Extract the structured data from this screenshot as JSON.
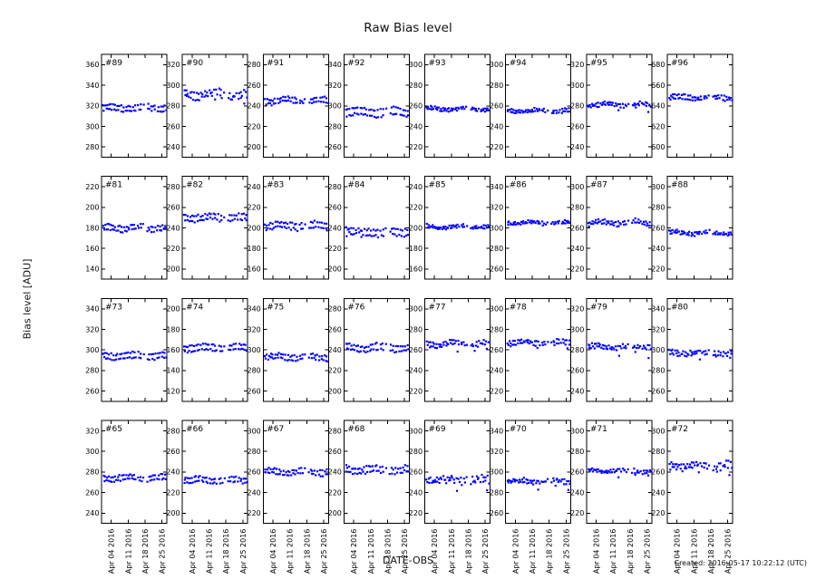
{
  "figure": {
    "title": "Raw Bias level",
    "ylabel": "Bias level [ADU]",
    "xlabel": "DATE-OBS",
    "created": "Created: 2016-05-17 10:22:12 (UTC)"
  },
  "chart_data": {
    "type": "scatter",
    "title": "Raw Bias level",
    "xlabel": "DATE-OBS",
    "ylabel": "Bias level [ADU]",
    "grid_layout": {
      "rows": 4,
      "cols": 8
    },
    "x_tick_labels": [
      "Apr 04 2016",
      "Apr 11 2016",
      "Apr 18 2016",
      "Apr 25 2016"
    ],
    "x_tick_days": [
      4,
      11,
      18,
      25
    ],
    "xlim_days": [
      0,
      27
    ],
    "marker_color": "#0000ff",
    "axes_color": "#000000",
    "marker_size_px": 2.2,
    "obs_days": [
      0.8,
      1.1,
      1.5,
      2.0,
      2.3,
      2.8,
      3.2,
      3.6,
      4.0,
      4.4,
      4.9,
      5.3,
      5.8,
      6.2,
      6.7,
      7.1,
      7.5,
      8.0,
      8.4,
      8.9,
      9.3,
      9.8,
      10.2,
      10.6,
      11.1,
      11.5,
      12.0,
      12.4,
      12.9,
      13.3,
      13.7,
      14.2,
      15.1,
      15.5,
      16.0,
      16.4,
      17.3,
      19.1,
      19.6,
      20.0,
      20.4,
      20.9,
      21.3,
      21.8,
      22.2,
      23.1,
      23.5,
      24.0,
      24.4,
      24.9,
      25.3,
      25.8,
      26.2,
      26.6
    ],
    "panels": [
      {
        "label": "#89",
        "yticks": [
          280,
          300,
          320,
          340,
          360
        ],
        "ylim": [
          270,
          370
        ],
        "mean": 318,
        "band_split": 4.5,
        "scatter": 0.8,
        "wave": 1.2
      },
      {
        "label": "#90",
        "yticks": [
          240,
          260,
          280,
          300,
          320
        ],
        "ylim": [
          230,
          330
        ],
        "mean": 291,
        "band_split": 4,
        "scatter": 2.0,
        "wave": 1.8,
        "outlier_drop": 6
      },
      {
        "label": "#91",
        "yticks": [
          200,
          220,
          240,
          260,
          280
        ],
        "ylim": [
          190,
          290
        ],
        "mean": 245,
        "band_split": 4,
        "scatter": 1.0,
        "wave": 1.4
      },
      {
        "label": "#92",
        "yticks": [
          260,
          280,
          300,
          320,
          340
        ],
        "ylim": [
          250,
          350
        ],
        "mean": 294,
        "band_split": 6,
        "scatter": 1.0,
        "wave": 1.5
      },
      {
        "label": "#93",
        "yticks": [
          220,
          240,
          260,
          280,
          300
        ],
        "ylim": [
          210,
          310
        ],
        "mean": 257,
        "band_split": 2,
        "scatter": 0.8,
        "wave": 1.0
      },
      {
        "label": "#94",
        "yticks": [
          220,
          240,
          260,
          280,
          300
        ],
        "ylim": [
          210,
          310
        ],
        "mean": 255,
        "band_split": 2,
        "scatter": 0.9,
        "wave": 1.0
      },
      {
        "label": "#95",
        "yticks": [
          240,
          260,
          280,
          300,
          320
        ],
        "ylim": [
          230,
          330
        ],
        "mean": 281,
        "band_split": 2,
        "scatter": 1.0,
        "wave": 1.2,
        "outlier_drop": 5
      },
      {
        "label": "#96",
        "yticks": [
          600,
          620,
          640,
          660,
          680
        ],
        "ylim": [
          590,
          690
        ],
        "mean": 648,
        "band_split": 3,
        "scatter": 1.0,
        "wave": 1.2
      },
      {
        "label": "#81",
        "yticks": [
          140,
          160,
          180,
          200,
          220
        ],
        "ylim": [
          130,
          230
        ],
        "mean": 180,
        "band_split": 4,
        "scatter": 1.0,
        "wave": 1.3
      },
      {
        "label": "#82",
        "yticks": [
          200,
          220,
          240,
          260,
          280
        ],
        "ylim": [
          190,
          290
        ],
        "mean": 250,
        "band_split": 5,
        "scatter": 1.0,
        "wave": 1.2
      },
      {
        "label": "#83",
        "yticks": [
          160,
          180,
          200,
          220,
          240
        ],
        "ylim": [
          150,
          250
        ],
        "mean": 202,
        "band_split": 5,
        "scatter": 1.0,
        "wave": 1.4
      },
      {
        "label": "#84",
        "yticks": [
          200,
          220,
          240,
          260,
          280
        ],
        "ylim": [
          190,
          290
        ],
        "mean": 236,
        "band_split": 5,
        "scatter": 1.8,
        "wave": 1.2
      },
      {
        "label": "#85",
        "yticks": [
          160,
          180,
          200,
          220,
          240
        ],
        "ylim": [
          150,
          250
        ],
        "mean": 201,
        "band_split": 2,
        "scatter": 0.9,
        "wave": 1.0
      },
      {
        "label": "#86",
        "yticks": [
          260,
          280,
          300,
          320,
          340
        ],
        "ylim": [
          250,
          350
        ],
        "mean": 305,
        "band_split": 2,
        "scatter": 0.9,
        "wave": 1.0
      },
      {
        "label": "#87",
        "yticks": [
          220,
          240,
          260,
          280,
          300
        ],
        "ylim": [
          210,
          310
        ],
        "mean": 265,
        "band_split": 3,
        "scatter": 1.1,
        "wave": 1.4
      },
      {
        "label": "#88",
        "yticks": [
          220,
          240,
          260,
          280,
          300
        ],
        "ylim": [
          210,
          310
        ],
        "mean": 255,
        "band_split": 2,
        "scatter": 1.0,
        "wave": 1.1
      },
      {
        "label": "#73",
        "yticks": [
          260,
          280,
          300,
          320,
          340
        ],
        "ylim": [
          250,
          350
        ],
        "mean": 294,
        "band_split": 5,
        "scatter": 0.8,
        "wave": 1.3
      },
      {
        "label": "#74",
        "yticks": [
          120,
          140,
          160,
          180,
          200
        ],
        "ylim": [
          110,
          210
        ],
        "mean": 162,
        "band_split": 5,
        "scatter": 0.8,
        "wave": 1.2
      },
      {
        "label": "#75",
        "yticks": [
          260,
          280,
          300,
          320,
          340
        ],
        "ylim": [
          250,
          350
        ],
        "mean": 293,
        "band_split": 4,
        "scatter": 0.9,
        "wave": 1.2
      },
      {
        "label": "#76",
        "yticks": [
          200,
          220,
          240,
          260,
          280
        ],
        "ylim": [
          190,
          290
        ],
        "mean": 242,
        "band_split": 5,
        "scatter": 1.0,
        "wave": 1.3
      },
      {
        "label": "#77",
        "yticks": [
          220,
          240,
          260,
          280,
          300
        ],
        "ylim": [
          210,
          310
        ],
        "mean": 266,
        "band_split": 3,
        "scatter": 1.3,
        "wave": 1.1,
        "outlier_drop": 8
      },
      {
        "label": "#78",
        "yticks": [
          220,
          240,
          260,
          280,
          300
        ],
        "ylim": [
          210,
          310
        ],
        "mean": 267,
        "band_split": 3,
        "scatter": 1.1,
        "wave": 1.1,
        "outlier_drop": 5
      },
      {
        "label": "#79",
        "yticks": [
          240,
          260,
          280,
          300,
          320
        ],
        "ylim": [
          230,
          330
        ],
        "mean": 283,
        "band_split": 3,
        "scatter": 1.0,
        "wave": 1.0,
        "outlier_drop": 7
      },
      {
        "label": "#80",
        "yticks": [
          260,
          280,
          300,
          320,
          340
        ],
        "ylim": [
          250,
          350
        ],
        "mean": 297,
        "band_split": 3,
        "scatter": 1.3,
        "wave": 1.2,
        "outlier_drop": 6
      },
      {
        "label": "#65",
        "yticks": [
          240,
          260,
          280,
          300,
          320
        ],
        "ylim": [
          230,
          330
        ],
        "mean": 274,
        "band_split": 4,
        "scatter": 0.8,
        "wave": 1.2
      },
      {
        "label": "#66",
        "yticks": [
          200,
          220,
          240,
          260,
          280
        ],
        "ylim": [
          190,
          290
        ],
        "mean": 232,
        "band_split": 4,
        "scatter": 0.9,
        "wave": 1.1
      },
      {
        "label": "#67",
        "yticks": [
          220,
          240,
          260,
          280,
          300
        ],
        "ylim": [
          210,
          310
        ],
        "mean": 260,
        "band_split": 4,
        "scatter": 0.9,
        "wave": 1.2
      },
      {
        "label": "#68",
        "yticks": [
          200,
          220,
          240,
          260,
          280
        ],
        "ylim": [
          190,
          290
        ],
        "mean": 242,
        "band_split": 5,
        "scatter": 1.2,
        "wave": 1.4
      },
      {
        "label": "#69",
        "yticks": [
          220,
          240,
          260,
          280,
          300
        ],
        "ylim": [
          210,
          310
        ],
        "mean": 252,
        "band_split": 4,
        "scatter": 2.4,
        "wave": 1.0,
        "outlier_drop": 5
      },
      {
        "label": "#70",
        "yticks": [
          260,
          280,
          300,
          320,
          340
        ],
        "ylim": [
          250,
          350
        ],
        "mean": 291,
        "band_split": 2,
        "scatter": 1.1,
        "wave": 1.0,
        "outlier_drop": 7
      },
      {
        "label": "#71",
        "yticks": [
          220,
          240,
          260,
          280,
          300
        ],
        "ylim": [
          210,
          310
        ],
        "mean": 261,
        "band_split": 2,
        "scatter": 1.0,
        "wave": 1.0,
        "outlier_drop": 6
      },
      {
        "label": "#72",
        "yticks": [
          220,
          240,
          260,
          280,
          300
        ],
        "ylim": [
          210,
          310
        ],
        "mean": 266,
        "band_split": 4,
        "scatter": 1.6,
        "wave": 1.2,
        "outlier_drop": 7
      }
    ]
  }
}
